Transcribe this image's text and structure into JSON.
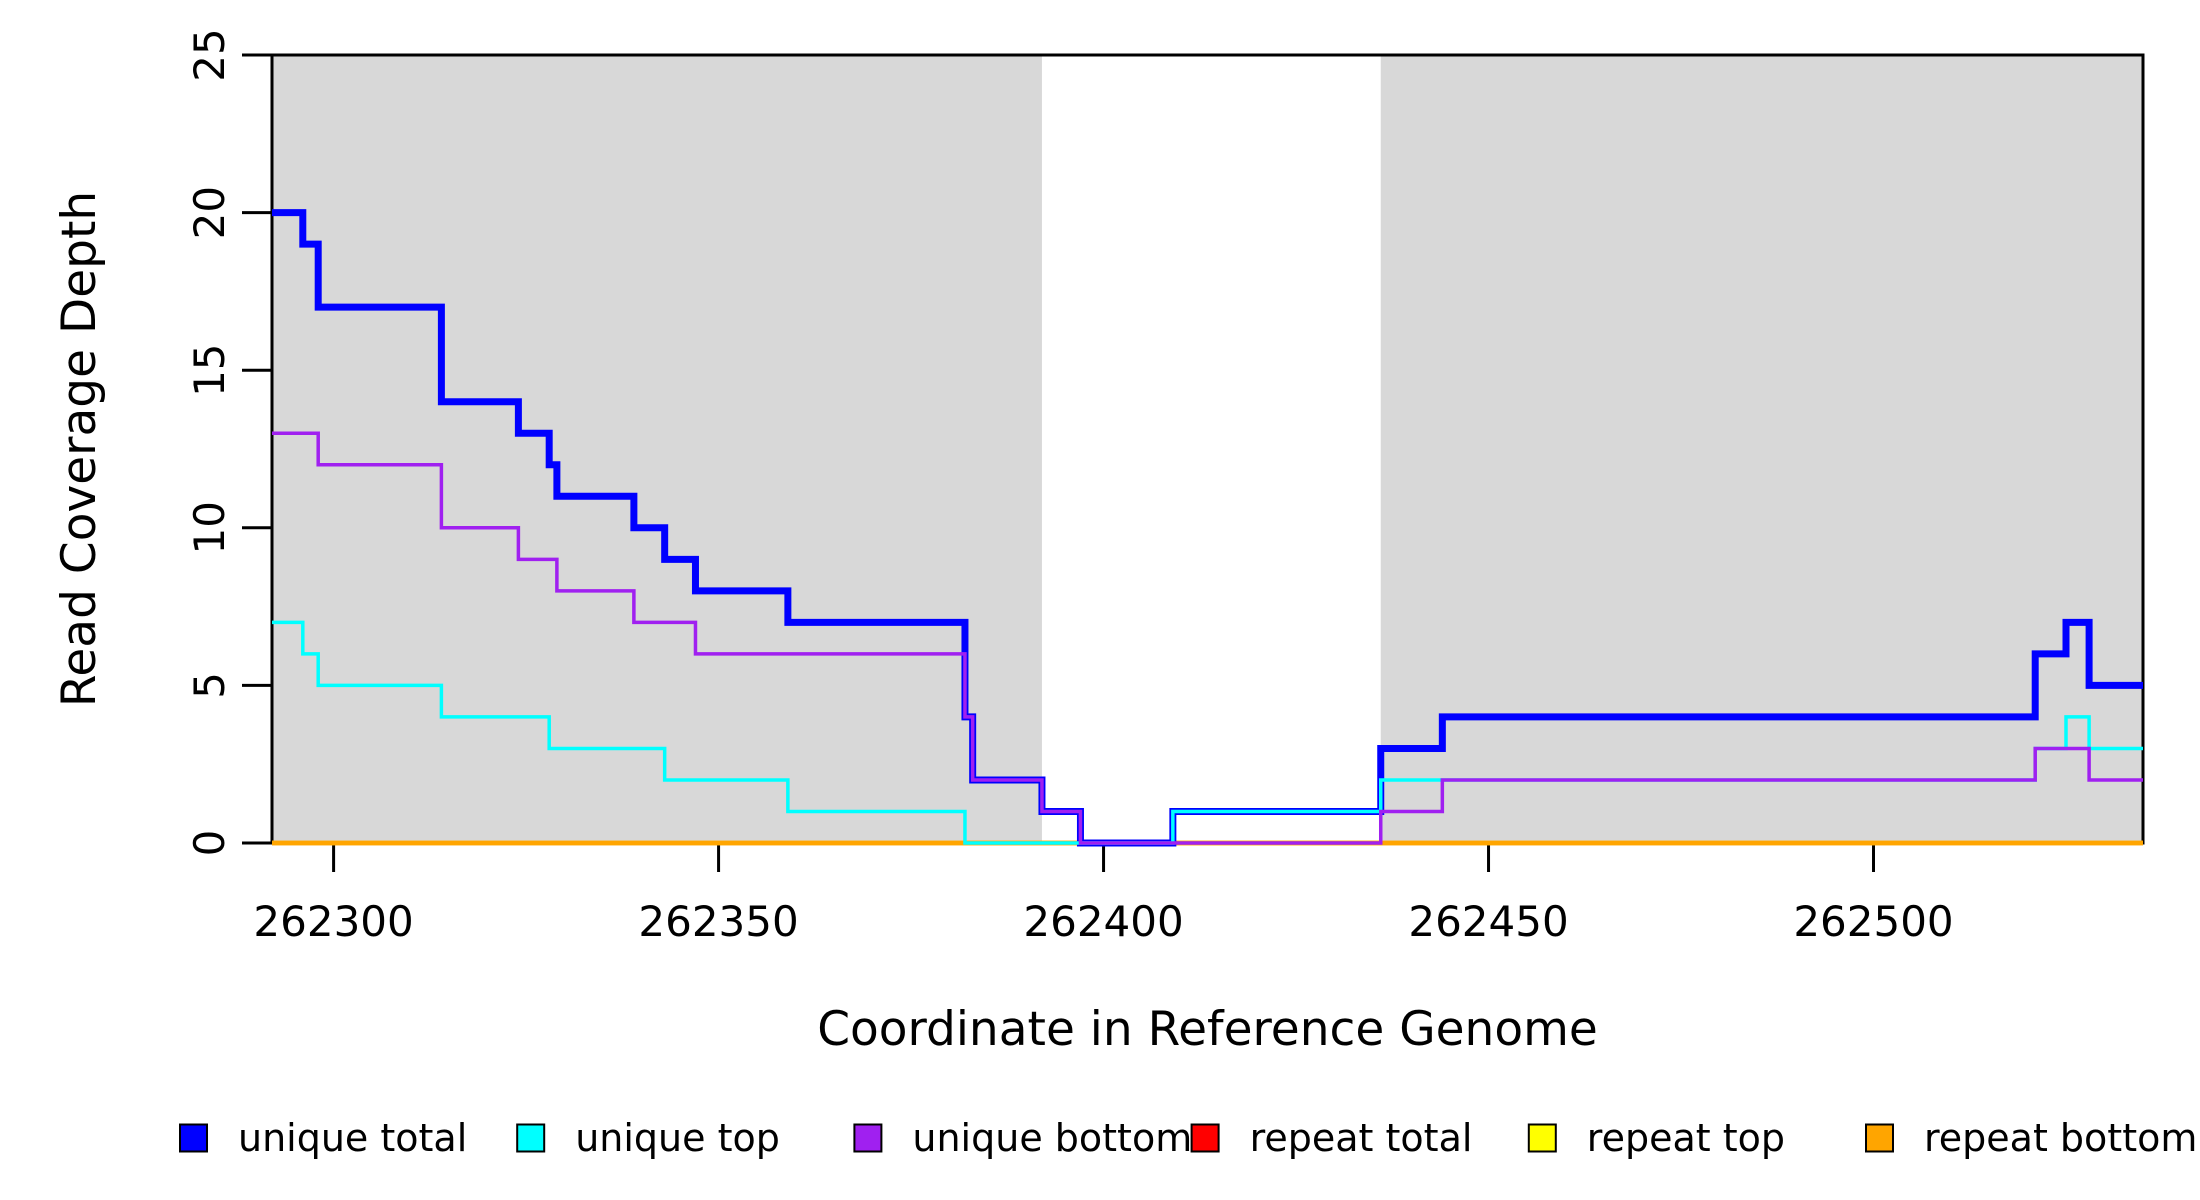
{
  "figure": {
    "background": "#ffffff",
    "plot_border_color": "#000000",
    "shaded_region_color": "#d8d8d8",
    "text_color": "#000000"
  },
  "chart_data": {
    "type": "line",
    "subtype": "step",
    "step_mode": "post",
    "title": "",
    "xlabel": "Coordinate in Reference Genome",
    "ylabel": "Read Coverage Depth",
    "xlim": [
      262292,
      262535
    ],
    "ylim": [
      0,
      25
    ],
    "x_ticks": [
      262300,
      262350,
      262400,
      262450,
      262500
    ],
    "x_tick_labels": [
      "262300",
      "262350",
      "262400",
      "262450",
      "262500"
    ],
    "y_ticks": [
      0,
      5,
      10,
      15,
      20,
      25
    ],
    "y_tick_labels": [
      "0",
      "5",
      "10",
      "15",
      "20",
      "25"
    ],
    "grid": false,
    "legend_position": "bottom",
    "shaded_regions": [
      {
        "x0": 262292,
        "x1": 262392
      },
      {
        "x0": 262436,
        "x1": 262535
      }
    ],
    "series": [
      {
        "name": "repeat total",
        "color": "#ff0000",
        "width": 4.5,
        "steps": [
          [
            262292,
            0
          ]
        ]
      },
      {
        "name": "repeat top",
        "color": "#ffff00",
        "width": 4.5,
        "steps": [
          [
            262292,
            0
          ]
        ]
      },
      {
        "name": "repeat bottom",
        "color": "#ffa500",
        "width": 4.5,
        "steps": [
          [
            262292,
            0
          ]
        ]
      },
      {
        "name": "unique total",
        "color": "#0000ff",
        "width": 7,
        "steps": [
          [
            262292,
            20
          ],
          [
            262296,
            19
          ],
          [
            262298,
            17
          ],
          [
            262314,
            14
          ],
          [
            262324,
            13
          ],
          [
            262328,
            12
          ],
          [
            262329,
            11
          ],
          [
            262339,
            10
          ],
          [
            262343,
            9
          ],
          [
            262347,
            8
          ],
          [
            262359,
            7
          ],
          [
            262382,
            4
          ],
          [
            262383,
            2
          ],
          [
            262392,
            1
          ],
          [
            262397,
            0
          ],
          [
            262409,
            1
          ],
          [
            262436,
            3
          ],
          [
            262444,
            4
          ],
          [
            262521,
            6
          ],
          [
            262525,
            7
          ],
          [
            262528,
            5
          ]
        ]
      },
      {
        "name": "unique top",
        "color": "#00ffff",
        "width": 3.5,
        "steps": [
          [
            262292,
            7
          ],
          [
            262296,
            6
          ],
          [
            262298,
            5
          ],
          [
            262314,
            4
          ],
          [
            262328,
            3
          ],
          [
            262343,
            2
          ],
          [
            262359,
            1
          ],
          [
            262382,
            0
          ],
          [
            262409,
            1
          ],
          [
            262436,
            2
          ],
          [
            262521,
            3
          ],
          [
            262525,
            4
          ],
          [
            262528,
            3
          ]
        ]
      },
      {
        "name": "unique bottom",
        "color": "#a020f0",
        "width": 3.5,
        "steps": [
          [
            262292,
            13
          ],
          [
            262298,
            12
          ],
          [
            262314,
            10
          ],
          [
            262324,
            9
          ],
          [
            262329,
            8
          ],
          [
            262339,
            7
          ],
          [
            262347,
            6
          ],
          [
            262382,
            4
          ],
          [
            262383,
            2
          ],
          [
            262392,
            1
          ],
          [
            262397,
            0
          ],
          [
            262436,
            1
          ],
          [
            262444,
            2
          ],
          [
            262521,
            3
          ],
          [
            262528,
            2
          ]
        ]
      }
    ],
    "legend": [
      {
        "label": "unique total",
        "color": "#0000ff"
      },
      {
        "label": "unique top",
        "color": "#00ffff"
      },
      {
        "label": "unique bottom",
        "color": "#a020f0"
      },
      {
        "label": "repeat total",
        "color": "#ff0000"
      },
      {
        "label": "repeat top",
        "color": "#ffff00"
      },
      {
        "label": "repeat bottom",
        "color": "#ffa500"
      }
    ]
  }
}
